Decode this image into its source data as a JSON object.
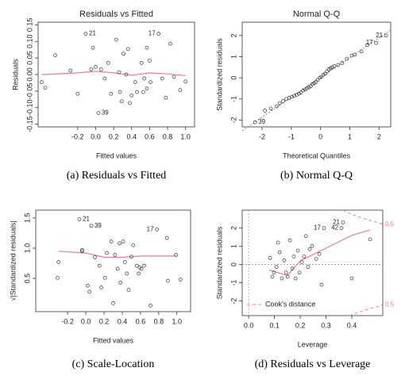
{
  "chart_data": [
    {
      "type": "scatter",
      "title": "Residuals vs Fitted",
      "caption": "(a) Residuals vs Fitted",
      "xlabel": "Fitted values",
      "ylabel": "Residuals",
      "x": [
        -0.6,
        -0.56,
        -0.45,
        -0.28,
        -0.2,
        -0.11,
        -0.05,
        -0.03,
        0.0,
        0.03,
        0.06,
        0.1,
        0.14,
        0.17,
        0.23,
        0.26,
        0.27,
        0.29,
        0.31,
        0.34,
        0.36,
        0.38,
        0.4,
        0.44,
        0.46,
        0.51,
        0.53,
        0.54,
        0.57,
        0.57,
        0.6,
        0.61,
        0.7,
        0.74,
        0.78,
        0.83,
        0.87,
        0.94,
        1.0
      ],
      "y": [
        -0.023,
        -0.04,
        0.058,
        0.012,
        -0.058,
        0.123,
        0.016,
        0.081,
        0.023,
        -0.116,
        0.016,
        -0.012,
        0.035,
        -0.058,
        0.105,
        0.007,
        -0.053,
        -0.081,
        0.063,
        0.0,
        0.077,
        -0.086,
        -0.063,
        -0.023,
        -0.053,
        0.035,
        -0.053,
        -0.012,
        0.081,
        -0.042,
        0.042,
        -0.023,
        0.123,
        -0.012,
        -0.07,
        0.093,
        -0.007,
        -0.047,
        -0.021
      ],
      "point_labels": [
        null,
        null,
        null,
        null,
        null,
        "21",
        null,
        null,
        null,
        "39",
        null,
        null,
        null,
        null,
        null,
        null,
        null,
        null,
        null,
        null,
        null,
        null,
        null,
        null,
        null,
        null,
        null,
        null,
        null,
        null,
        null,
        null,
        "17",
        null,
        null,
        null,
        null,
        null,
        null
      ],
      "smooth": {
        "color": "#e57f9a",
        "x": [
          -0.6,
          -0.2,
          0.0,
          0.2,
          0.4,
          0.6,
          0.8,
          1.0
        ],
        "y": [
          0.0,
          0.005,
          0.01,
          0.005,
          -0.002,
          0.005,
          0.002,
          -0.003
        ]
      },
      "xlim": [
        -0.64,
        1.1
      ],
      "ylim": [
        -0.158,
        0.158
      ],
      "xticks": [
        -0.2,
        {
          "value": 0,
          "label": "0.0"
        },
        0.2,
        0.4,
        0.6,
        0.8,
        {
          "value": 1,
          "label": "1.0"
        }
      ],
      "yticks": [
        -0.15,
        {
          "value": -0.1,
          "label": "-0.10"
        },
        -0.05,
        {
          "value": 0,
          "label": "0.00"
        },
        0.05,
        {
          "value": 0.1,
          "label": "0.10"
        },
        0.15
      ]
    },
    {
      "type": "scatter",
      "title": "Normal Q-Q",
      "caption": "(b) Normal Q-Q",
      "xlabel": "Theoretical Quantiles",
      "ylabel": "Standardized residuals",
      "x": [
        -2.24,
        -1.9,
        -1.7,
        -1.5,
        -1.4,
        -1.28,
        -1.17,
        -1.07,
        -0.98,
        -0.9,
        -0.82,
        -0.74,
        -0.67,
        -0.6,
        -0.53,
        -0.47,
        -0.4,
        -0.34,
        -0.28,
        -0.22,
        -0.16,
        -0.1,
        -0.03,
        0.03,
        0.1,
        0.16,
        0.22,
        0.28,
        0.34,
        0.4,
        0.47,
        0.6,
        0.74,
        0.9,
        1.07,
        1.17,
        1.4,
        1.6,
        1.9,
        2.24
      ],
      "y": [
        -2.1,
        -1.55,
        -1.45,
        -1.35,
        -1.2,
        -1.1,
        -1.0,
        -0.95,
        -0.9,
        -0.85,
        -0.8,
        -0.75,
        -0.7,
        -0.6,
        -0.55,
        -0.5,
        -0.45,
        -0.4,
        -0.3,
        -0.25,
        -0.2,
        -0.1,
        0.0,
        0.05,
        0.15,
        0.2,
        0.3,
        0.4,
        0.45,
        0.5,
        0.55,
        0.6,
        0.7,
        0.9,
        1.05,
        1.1,
        1.25,
        1.55,
        1.65,
        2.0
      ],
      "point_labels": [
        "39",
        null,
        null,
        null,
        null,
        null,
        null,
        null,
        null,
        null,
        null,
        null,
        null,
        null,
        null,
        null,
        null,
        null,
        null,
        null,
        null,
        null,
        null,
        null,
        null,
        null,
        null,
        null,
        null,
        null,
        null,
        null,
        null,
        null,
        null,
        null,
        null,
        null,
        "17",
        "21"
      ],
      "ref_line": {
        "color": "#888888",
        "x": [
          -2.68,
          2.4
        ],
        "y": [
          -2.5,
          2.27
        ]
      },
      "xlim": [
        -2.68,
        2.4
      ],
      "ylim": [
        -2.32,
        2.63
      ],
      "xticks": [
        -2,
        -1,
        0,
        1,
        2
      ],
      "yticks": [
        -2,
        -1,
        0,
        1,
        2
      ]
    },
    {
      "type": "scatter",
      "caption": "(c) Scale-Location",
      "xlabel": "Fitted values",
      "ylabel": "√|Standardized residuals|",
      "x": [
        -0.3,
        -0.31,
        -0.04,
        -0.04,
        -0.07,
        0.06,
        0.02,
        0.04,
        0.1,
        0.15,
        0.17,
        0.21,
        0.23,
        0.28,
        0.3,
        0.32,
        0.35,
        0.37,
        0.38,
        0.41,
        0.43,
        0.45,
        0.47,
        0.5,
        0.52,
        0.56,
        0.58,
        0.59,
        0.61,
        0.64,
        0.71,
        0.78,
        0.89,
        0.9,
        0.99,
        1.04
      ],
      "y": [
        0.77,
        0.51,
        0.95,
        0.97,
        1.48,
        1.37,
        0.38,
        0.28,
        0.85,
        0.71,
        0.35,
        0.51,
        0.92,
        1.11,
        0.09,
        0.89,
        0.66,
        1.08,
        0.43,
        1.11,
        0.77,
        0.58,
        0.31,
        0.86,
        1.05,
        0.71,
        0.58,
        0.68,
        0.66,
        0.71,
        0.05,
        1.31,
        1.17,
        0.46,
        0.89,
        0.48
      ],
      "point_labels": [
        null,
        null,
        null,
        null,
        "21",
        "39",
        null,
        null,
        null,
        null,
        null,
        null,
        null,
        null,
        null,
        null,
        null,
        null,
        null,
        null,
        null,
        null,
        null,
        null,
        null,
        null,
        null,
        null,
        null,
        null,
        null,
        "17",
        null,
        null,
        null,
        null
      ],
      "smooth": {
        "color": "#e57f9a",
        "x": [
          -0.3,
          0.0,
          0.2,
          0.4,
          0.6,
          0.8,
          1.0
        ],
        "y": [
          0.95,
          0.92,
          0.85,
          0.85,
          0.87,
          0.87,
          0.87
        ]
      },
      "xlim": [
        -0.55,
        1.15
      ],
      "ylim": [
        -0.05,
        1.63
      ],
      "xticks": [
        -0.2,
        {
          "value": 0,
          "label": "0.0"
        },
        0.2,
        0.4,
        0.6,
        0.8,
        {
          "value": 1,
          "label": "1.0"
        }
      ],
      "yticks": [
        0.5,
        {
          "value": 1,
          "label": "1.0"
        },
        1.5
      ]
    },
    {
      "type": "scatter",
      "caption": "(d) Residuals vs Leverage",
      "xlabel": "Leverage",
      "ylabel": "Standardized residuals",
      "x": [
        0.083,
        0.092,
        0.098,
        0.108,
        0.114,
        0.12,
        0.129,
        0.138,
        0.145,
        0.151,
        0.16,
        0.169,
        0.175,
        0.182,
        0.191,
        0.197,
        0.206,
        0.215,
        0.222,
        0.231,
        0.237,
        0.246,
        0.262,
        0.274,
        0.283,
        0.292,
        0.36,
        0.366,
        0.4,
        0.471
      ],
      "y": [
        0.36,
        -0.67,
        -0.44,
        -0.13,
        1.2,
        0.67,
        -0.76,
        0.22,
        -0.44,
        -0.67,
        1.33,
        -0.22,
        0.44,
        -0.76,
        0.76,
        -0.44,
        0.13,
        0.44,
        1.56,
        -0.13,
        0.84,
        1.02,
        0.31,
        0.58,
        -1.11,
        2.0,
        2.0,
        2.31,
        -0.76,
        1.38
      ],
      "point_labels": [
        null,
        null,
        null,
        null,
        null,
        null,
        null,
        null,
        null,
        null,
        null,
        null,
        null,
        null,
        null,
        null,
        null,
        null,
        null,
        null,
        null,
        null,
        null,
        null,
        null,
        "17",
        "42",
        "21",
        null,
        null
      ],
      "smooth": {
        "color": "#e57f9a",
        "x": [
          0.08,
          0.15,
          0.2,
          0.3,
          0.4,
          0.47
        ],
        "y": [
          -0.3,
          -0.6,
          0.2,
          0.9,
          1.6,
          1.9
        ]
      },
      "cooks": {
        "name": "Cook's distance",
        "color": "#e57f9a",
        "levels": [
          0.5,
          0.5
        ],
        "upper": {
          "x": [
            0.365,
            0.4,
            0.45,
            0.5,
            0.52
          ],
          "y": [
            2.98,
            2.75,
            2.5,
            2.3,
            2.2
          ]
        },
        "lower": {
          "x": [
            0.39,
            0.45,
            0.5,
            0.52
          ],
          "y": [
            -2.8,
            -2.5,
            -2.3,
            -2.2
          ]
        }
      },
      "vline": 0,
      "hline": 0,
      "xlim": [
        -0.025,
        0.52
      ],
      "ylim": [
        -2.8,
        2.98
      ],
      "xticks": [
        {
          "value": 0,
          "label": "0.0"
        },
        0.1,
        0.2,
        0.3,
        0.4
      ],
      "yticks": [
        -2,
        -1,
        0,
        1,
        2
      ]
    }
  ]
}
